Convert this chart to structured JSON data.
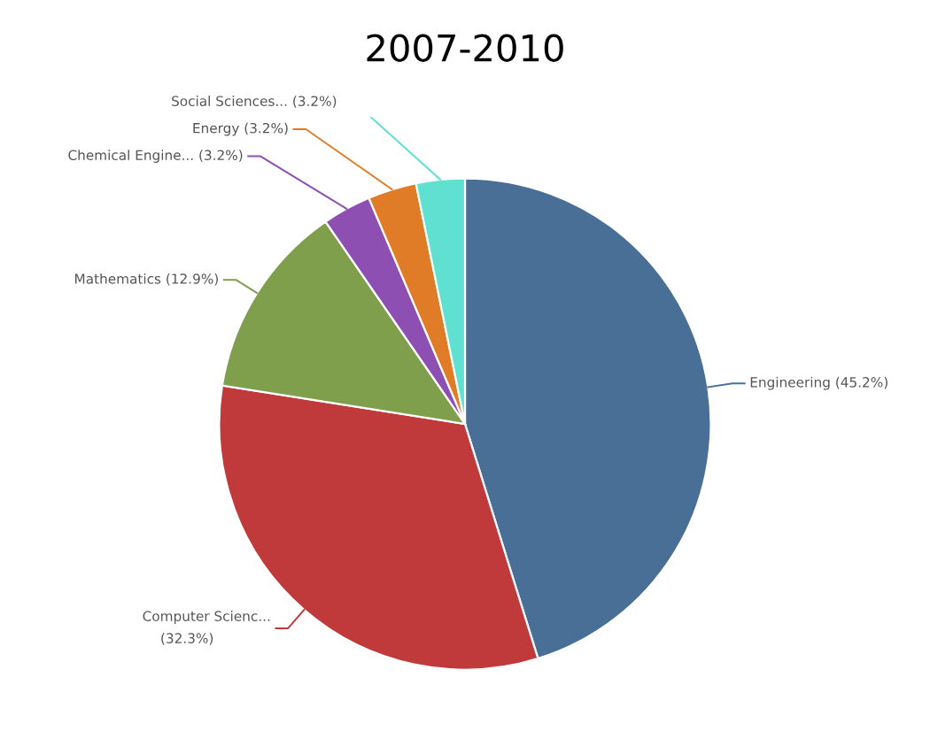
{
  "chart_data": {
    "type": "pie",
    "title": "2007-2010",
    "categories": [
      "Engineering",
      "Computer Scienc...",
      "Mathematics",
      "Chemical Engine...",
      "Energy",
      "Social Sciences..."
    ],
    "values": [
      45.2,
      32.3,
      12.9,
      3.2,
      3.2,
      3.2
    ],
    "value_labels": [
      "(45.2%)",
      "(32.3%)",
      "(12.9%)",
      "(3.2%)",
      "(3.2%)",
      "(3.2%)"
    ],
    "colors": [
      "#4a6f97",
      "#c0393b",
      "#7f9f4c",
      "#8e4fb3",
      "#e07b28",
      "#5fe0d0"
    ]
  }
}
